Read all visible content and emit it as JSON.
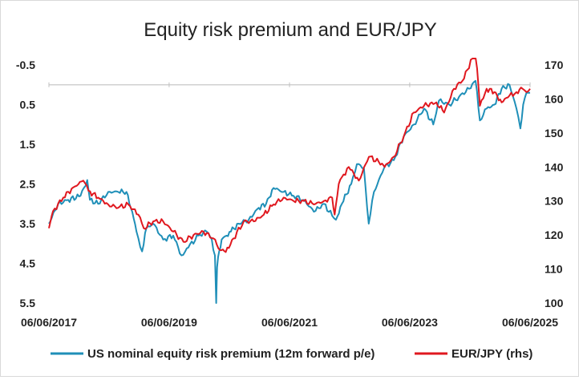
{
  "chart_data": {
    "type": "line",
    "title": "Equity risk premium and EUR/JPY",
    "xlabel": "",
    "ylabel": "",
    "y2label": "",
    "x_ticks": [
      "06/06/2017",
      "06/06/2019",
      "06/06/2021",
      "06/06/2023",
      "06/06/2025"
    ],
    "y_left": {
      "ticks": [
        "-0.5",
        "0.5",
        "1.5",
        "2.5",
        "3.5",
        "4.5",
        "5.5"
      ],
      "ylim": [
        -0.5,
        5.5
      ],
      "inverted": true
    },
    "y_right": {
      "ticks": [
        "170",
        "160",
        "150",
        "140",
        "130",
        "120",
        "110",
        "100"
      ],
      "ylim": [
        100,
        170
      ]
    },
    "legend_position": "bottom",
    "series": [
      {
        "name": "US nominal equity risk premium (12m forward p/e)",
        "axis": "left",
        "color": "#1f8fb8",
        "x": [
          "2017-06-06",
          "2017-08-01",
          "2017-10-01",
          "2017-12-15",
          "2018-01-25",
          "2018-02-10",
          "2018-04-01",
          "2018-06-01",
          "2018-08-01",
          "2018-09-20",
          "2018-10-25",
          "2018-11-20",
          "2018-12-24",
          "2019-01-20",
          "2019-03-01",
          "2019-05-01",
          "2019-07-01",
          "2019-08-20",
          "2019-10-01",
          "2019-12-01",
          "2020-01-20",
          "2020-02-20",
          "2020-03-10",
          "2020-03-18",
          "2020-03-23",
          "2020-04-05",
          "2020-04-20",
          "2020-05-20",
          "2020-06-15",
          "2020-08-01",
          "2020-10-01",
          "2020-12-01",
          "2021-01-15",
          "2021-03-01",
          "2021-05-01",
          "2021-07-01",
          "2021-09-01",
          "2021-11-01",
          "2022-01-01",
          "2022-02-20",
          "2022-03-15",
          "2022-04-20",
          "2022-06-16",
          "2022-07-20",
          "2022-09-01",
          "2022-09-30",
          "2022-11-01",
          "2023-01-01",
          "2023-03-01",
          "2023-05-01",
          "2023-07-01",
          "2023-09-01",
          "2023-10-27",
          "2023-12-01",
          "2024-02-01",
          "2024-04-01",
          "2024-06-01",
          "2024-07-10",
          "2024-08-05",
          "2024-09-15",
          "2024-11-01",
          "2024-12-15",
          "2025-02-01",
          "2025-03-15",
          "2025-04-08",
          "2025-04-25",
          "2025-05-15",
          "2025-06-06"
        ],
        "values": [
          3.5,
          3.0,
          2.9,
          2.8,
          2.4,
          2.9,
          3.0,
          2.7,
          2.7,
          2.7,
          3.2,
          3.7,
          4.2,
          3.6,
          3.5,
          3.9,
          3.8,
          4.3,
          4.1,
          3.8,
          3.7,
          3.9,
          4.3,
          5.5,
          4.6,
          4.2,
          3.9,
          3.8,
          3.7,
          3.5,
          3.4,
          3.1,
          3.0,
          2.6,
          2.7,
          2.8,
          2.9,
          3.2,
          3.0,
          3.3,
          3.4,
          3.0,
          2.5,
          2.0,
          2.1,
          3.5,
          2.7,
          2.1,
          1.9,
          1.3,
          1.0,
          0.6,
          1.0,
          0.4,
          0.5,
          0.3,
          0.1,
          -0.1,
          0.9,
          0.6,
          0.5,
          0.1,
          0.0,
          0.6,
          1.1,
          0.5,
          0.2,
          0.2
        ]
      },
      {
        "name": "EUR/JPY (rhs)",
        "axis": "right",
        "color": "#e0181f",
        "x": [
          "2017-06-06",
          "2017-07-01",
          "2017-09-01",
          "2017-11-01",
          "2018-01-01",
          "2018-02-01",
          "2018-04-01",
          "2018-06-01",
          "2018-08-01",
          "2018-10-01",
          "2018-12-01",
          "2019-01-03",
          "2019-03-01",
          "2019-05-01",
          "2019-07-01",
          "2019-09-01",
          "2019-11-01",
          "2020-01-01",
          "2020-03-01",
          "2020-04-01",
          "2020-05-15",
          "2020-07-01",
          "2020-09-01",
          "2020-11-01",
          "2021-01-01",
          "2021-03-01",
          "2021-05-01",
          "2021-07-01",
          "2021-09-01",
          "2021-11-01",
          "2022-01-01",
          "2022-02-20",
          "2022-03-07",
          "2022-04-01",
          "2022-04-20",
          "2022-06-01",
          "2022-08-01",
          "2022-10-01",
          "2022-12-20",
          "2023-01-05",
          "2023-03-01",
          "2023-05-01",
          "2023-07-01",
          "2023-09-01",
          "2023-11-15",
          "2024-01-01",
          "2024-03-01",
          "2024-05-01",
          "2024-07-11",
          "2024-08-05",
          "2024-09-15",
          "2024-11-01",
          "2024-12-15",
          "2025-02-01",
          "2025-03-15",
          "2025-04-21",
          "2025-05-15",
          "2025-06-06"
        ],
        "values": [
          122,
          127,
          131,
          134,
          136,
          133,
          131,
          129,
          128,
          129,
          126,
          122,
          124,
          124,
          121,
          118,
          120,
          121,
          119,
          116,
          115,
          119,
          124,
          124,
          126,
          129,
          131,
          130,
          130,
          129,
          130,
          131,
          126,
          135,
          137,
          140,
          136,
          143,
          141,
          140,
          143,
          149,
          156,
          158,
          159,
          156,
          163,
          166,
          175,
          158,
          163,
          162,
          159,
          161,
          162,
          163,
          162,
          163
        ]
      }
    ]
  }
}
